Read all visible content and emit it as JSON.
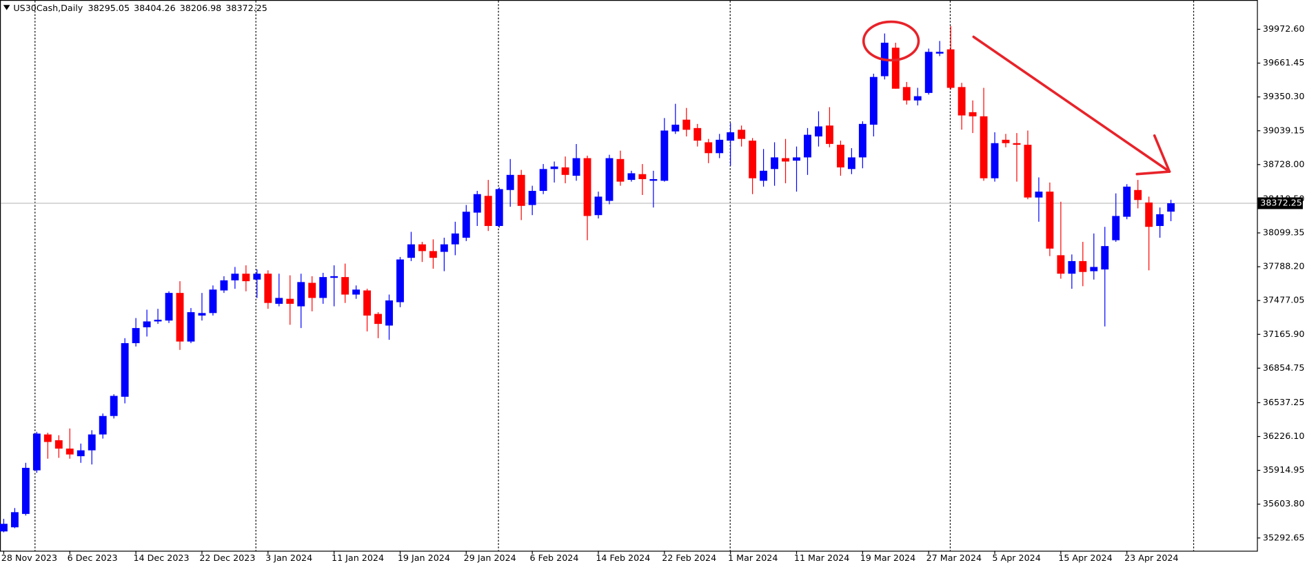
{
  "chart_data": {
    "type": "candlestick",
    "title": "US30Cash,Daily",
    "up_color": "#0000ff",
    "down_color": "#ff0000",
    "categories": [
      "28 Nov 2023",
      null,
      null,
      null,
      null,
      null,
      "6 Dec 2023",
      null,
      null,
      null,
      null,
      null,
      "14 Dec 2023",
      null,
      null,
      null,
      null,
      null,
      "22 Dec 2023",
      null,
      null,
      null,
      null,
      null,
      "3 Jan 2024",
      null,
      null,
      null,
      null,
      null,
      "11 Jan 2024",
      null,
      null,
      null,
      null,
      null,
      "19 Jan 2024",
      null,
      null,
      null,
      null,
      null,
      "29 Jan 2024",
      null,
      null,
      null,
      null,
      null,
      "6 Feb 2024",
      null,
      null,
      null,
      null,
      null,
      "14 Feb 2024",
      null,
      null,
      null,
      null,
      null,
      "22 Feb 2024",
      null,
      null,
      null,
      null,
      null,
      "1 Mar 2024",
      null,
      null,
      null,
      null,
      null,
      "11 Mar 2024",
      null,
      null,
      null,
      null,
      null,
      "19 Mar 2024",
      null,
      null,
      null,
      null,
      null,
      "27 Mar 2024",
      null,
      null,
      null,
      null,
      null,
      "5 Apr 2024",
      null,
      null,
      null,
      null,
      null,
      "15 Apr 2024",
      null,
      null,
      null,
      null,
      null,
      "23 Apr 2024",
      null,
      null,
      null,
      null
    ],
    "open": [
      35353,
      35391,
      35514,
      35915,
      36245,
      36192,
      36115,
      36045,
      36099,
      36245,
      36415,
      36592,
      37085,
      37231,
      37285,
      37293,
      37547,
      37100,
      37339,
      37362,
      37570,
      37663,
      37724,
      37670,
      37724,
      37447,
      37493,
      37424,
      37640,
      37501,
      37686,
      37693,
      37532,
      37570,
      37354,
      37247,
      37462,
      37870,
      37994,
      37932,
      37925,
      37994,
      38055,
      38286,
      38440,
      38163,
      38494,
      38633,
      38356,
      38486,
      38687,
      38702,
      38625,
      38787,
      38263,
      38394,
      38779,
      38587,
      38640,
      38579,
      38579,
      39033,
      39141,
      39064,
      38933,
      38833,
      38948,
      39048,
      38948,
      38579,
      38687,
      38787,
      38764,
      38794,
      38987,
      39087,
      38910,
      38687,
      38794,
      39095,
      39541,
      39803,
      39441,
      39318,
      39387,
      39749,
      39788,
      39441,
      39210,
      39172,
      38602,
      38956,
      38925,
      38910,
      38425,
      38479,
      37894,
      37724,
      37840,
      37747,
      37763,
      38032,
      38248,
      38494,
      38379,
      38163,
      38295.05
    ],
    "high": [
      35469,
      35568,
      35984,
      36269,
      36261,
      36238,
      36300,
      36161,
      36284,
      36438,
      36615,
      37131,
      37316,
      37393,
      37401,
      37562,
      37655,
      37408,
      37547,
      37616,
      37701,
      37786,
      37801,
      37763,
      37755,
      37724,
      37709,
      37724,
      37701,
      37732,
      37801,
      37817,
      37616,
      37586,
      37370,
      37532,
      37878,
      38109,
      38017,
      38040,
      38055,
      38202,
      38356,
      38486,
      38587,
      38517,
      38779,
      38679,
      38533,
      38733,
      38756,
      38802,
      38917,
      38810,
      38479,
      38818,
      38856,
      38671,
      38733,
      38671,
      39156,
      39287,
      39249,
      39102,
      38964,
      39010,
      39110,
      39087,
      38972,
      38871,
      38933,
      38964,
      38894,
      39064,
      39218,
      39256,
      38948,
      38879,
      39126,
      39564,
      39934,
      39849,
      39488,
      39434,
      39795,
      39865,
      40003,
      39480,
      39318,
      39434,
      39025,
      39010,
      39018,
      39041,
      38610,
      38563,
      38386,
      37901,
      38017,
      38094,
      38155,
      38463,
      38548,
      38587,
      38433,
      38333,
      38404.26
    ],
    "low": [
      35345,
      35383,
      35499,
      35892,
      36022,
      36030,
      36022,
      35984,
      35969,
      36207,
      36392,
      36531,
      37054,
      37146,
      37262,
      37270,
      37023,
      37085,
      37293,
      37339,
      37547,
      37585,
      37562,
      37501,
      37401,
      37424,
      37254,
      37224,
      37378,
      37447,
      37424,
      37455,
      37493,
      37193,
      37131,
      37116,
      37416,
      37840,
      37832,
      37770,
      37747,
      37894,
      38024,
      38163,
      38117,
      38148,
      38340,
      38217,
      38263,
      38456,
      38563,
      38556,
      38579,
      38032,
      38232,
      38363,
      38533,
      38571,
      38448,
      38333,
      38571,
      39010,
      38987,
      38894,
      38741,
      38787,
      38717,
      38894,
      38456,
      38525,
      38533,
      38556,
      38479,
      38633,
      38894,
      38887,
      38625,
      38640,
      38694,
      38987,
      39511,
      39426,
      39280,
      39272,
      39372,
      39726,
      39418,
      39049,
      39018,
      38579,
      38571,
      38887,
      38571,
      38409,
      38202,
      37886,
      37678,
      37585,
      37609,
      37670,
      37239,
      38017,
      38225,
      38325,
      37755,
      38055,
      38206.98
    ],
    "close": [
      35423,
      35530,
      35938,
      36253,
      36176,
      36115,
      36061,
      36099,
      36245,
      36415,
      36600,
      37085,
      37224,
      37285,
      37300,
      37547,
      37100,
      37370,
      37362,
      37578,
      37663,
      37724,
      37655,
      37724,
      37455,
      37501,
      37447,
      37647,
      37501,
      37693,
      37701,
      37532,
      37578,
      37339,
      37262,
      37478,
      37855,
      37994,
      37932,
      37870,
      37994,
      38094,
      38294,
      38456,
      38163,
      38502,
      38633,
      38348,
      38486,
      38687,
      38710,
      38633,
      38787,
      38255,
      38433,
      38787,
      38571,
      38648,
      38594,
      38594,
      39041,
      39095,
      39048,
      38948,
      38833,
      38956,
      39025,
      38964,
      38602,
      38671,
      38794,
      38756,
      38794,
      39002,
      39079,
      38918,
      38702,
      38794,
      39102,
      39534,
      39849,
      39426,
      39318,
      39357,
      39765,
      39765,
      39434,
      39180,
      39172,
      38602,
      38925,
      38925,
      38910,
      38425,
      38479,
      37955,
      37724,
      37840,
      37740,
      37786,
      37978,
      38255,
      38525,
      38402,
      38155,
      38271,
      38372.25
    ],
    "ylim": [
      35175,
      40242
    ],
    "yticks": [
      35292.65,
      {
        "value": 35603.8,
        "label": "35603.80"
      },
      35914.95,
      {
        "value": 36226.1,
        "label": "36226.10"
      },
      36537.25,
      36854.75,
      {
        "value": 37165.9,
        "label": "37165.90"
      },
      37477.05,
      {
        "value": 37788.2,
        "label": "37788.20"
      },
      38099.35,
      {
        "value": 38410.5,
        "label": "38410.50"
      },
      {
        "value": 38728,
        "label": "38728.00"
      },
      39039.15,
      {
        "value": 39350.3,
        "label": "39350.30"
      },
      39661.45,
      {
        "value": 39972.6,
        "label": "39972.60"
      }
    ]
  }
}
